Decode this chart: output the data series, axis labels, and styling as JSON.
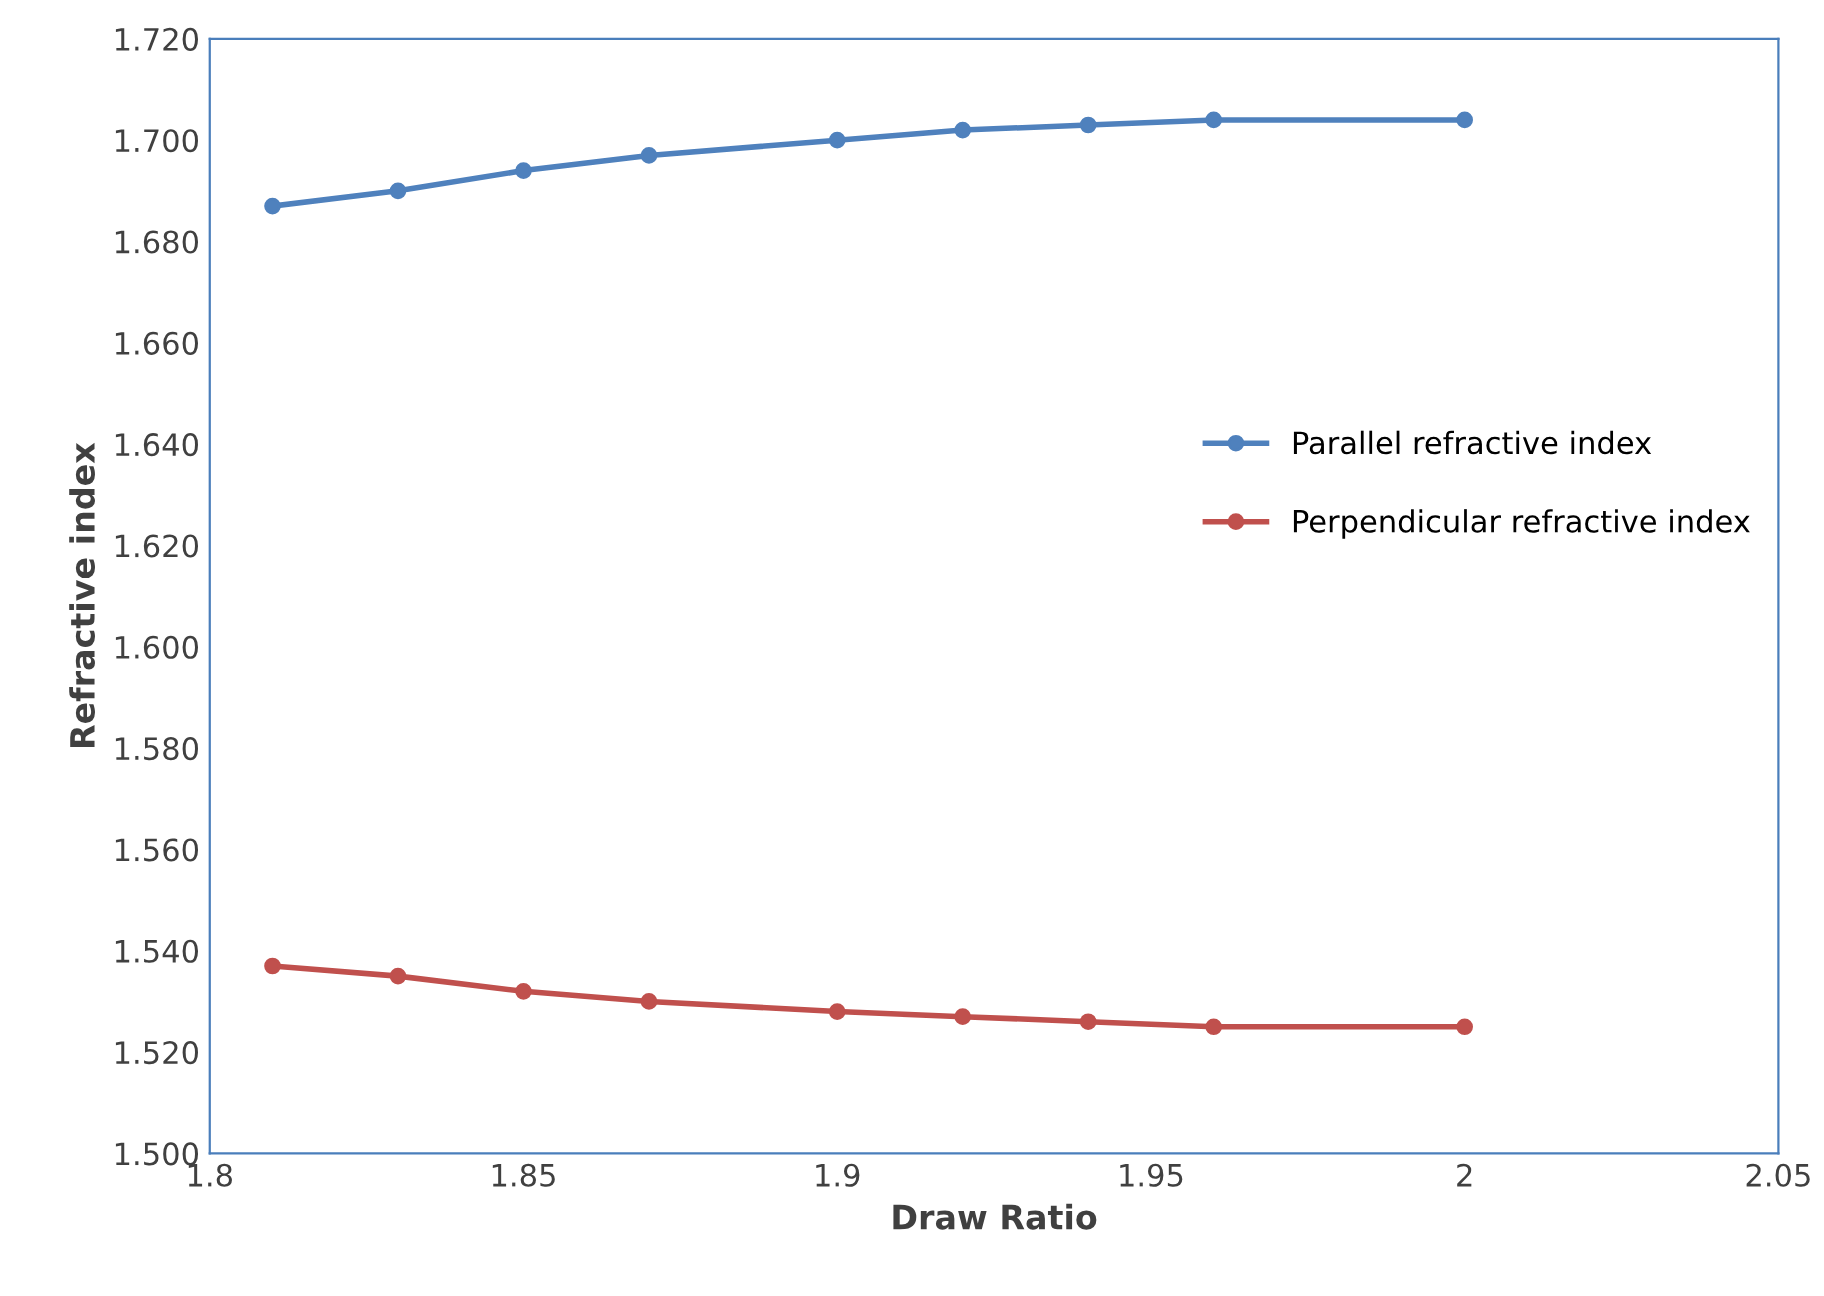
{
  "chart_data": {
    "type": "line",
    "xlabel": "Draw Ratio",
    "ylabel": "Refractive index",
    "x": [
      1.81,
      1.83,
      1.85,
      1.87,
      1.9,
      1.92,
      1.94,
      1.96,
      2.0
    ],
    "series": [
      {
        "name": "Parallel refractive index",
        "color": "#4f81bd",
        "values": [
          1.687,
          1.69,
          1.694,
          1.697,
          1.7,
          1.702,
          1.703,
          1.704,
          1.704
        ]
      },
      {
        "name": "Perpendicular refractive index",
        "color": "#c0504d",
        "values": [
          1.537,
          1.535,
          1.532,
          1.53,
          1.528,
          1.527,
          1.526,
          1.525,
          1.525
        ]
      }
    ],
    "xlim": [
      1.8,
      2.05
    ],
    "xticks": [
      {
        "value": 1.8,
        "label": "1.8"
      },
      {
        "value": 1.85,
        "label": "1.85"
      },
      {
        "value": 1.9,
        "label": "1.9"
      },
      {
        "value": 1.95,
        "label": "1.95"
      },
      {
        "value": 2,
        "label": "2"
      },
      {
        "value": 2.05,
        "label": "2.05"
      }
    ],
    "ylim": [
      1.5,
      1.72
    ],
    "yticks": [
      {
        "value": 1.5,
        "label": "1.500"
      },
      {
        "value": 1.52,
        "label": "1.520"
      },
      {
        "value": 1.54,
        "label": "1.540"
      },
      {
        "value": 1.56,
        "label": "1.560"
      },
      {
        "value": 1.58,
        "label": "1.580"
      },
      {
        "value": 1.6,
        "label": "1.600"
      },
      {
        "value": 1.62,
        "label": "1.620"
      },
      {
        "value": 1.64,
        "label": "1.640"
      },
      {
        "value": 1.66,
        "label": "1.660"
      },
      {
        "value": 1.68,
        "label": "1.680"
      },
      {
        "value": 1.7,
        "label": "1.700"
      },
      {
        "value": 1.72,
        "label": "1.720"
      }
    ],
    "marker": "circle",
    "grid": false,
    "legend": "right"
  }
}
